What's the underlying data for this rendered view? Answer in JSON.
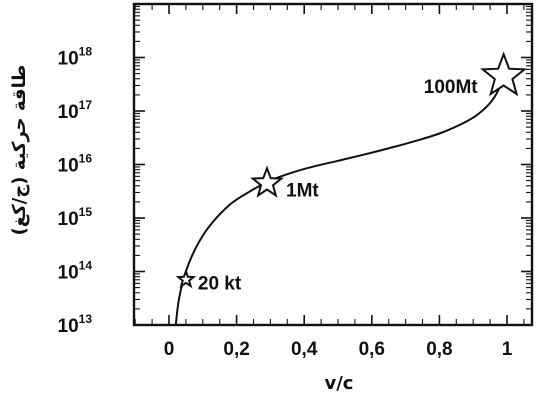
{
  "chart_data": {
    "type": "line",
    "xlabel": "v/c",
    "ylabel": "طاقة حركية (ج/كغ)",
    "xlim": [
      -0.1,
      1.1
    ],
    "ylim_log10": [
      13,
      19
    ],
    "y_scale": "log",
    "grid": false,
    "x_ticks": [
      {
        "value": 0,
        "label": "0"
      },
      {
        "value": 0.2,
        "label": "0,2"
      },
      {
        "value": 0.4,
        "label": "0,4"
      },
      {
        "value": 0.6,
        "label": "0,6"
      },
      {
        "value": 0.8,
        "label": "0,8"
      },
      {
        "value": 1,
        "label": "1"
      }
    ],
    "y_ticks": [
      {
        "exp": 13,
        "base": "10",
        "sup": "13"
      },
      {
        "exp": 14,
        "base": "10",
        "sup": "14"
      },
      {
        "exp": 15,
        "base": "10",
        "sup": "15"
      },
      {
        "exp": 16,
        "base": "10",
        "sup": "16"
      },
      {
        "exp": 17,
        "base": "10",
        "sup": "17"
      },
      {
        "exp": 18,
        "base": "10",
        "sup": "18"
      }
    ],
    "curve": [
      {
        "x": 0.02,
        "log10y": 12.9
      },
      {
        "x": 0.03,
        "log10y": 13.5
      },
      {
        "x": 0.05,
        "log10y": 14.0
      },
      {
        "x": 0.08,
        "log10y": 14.45
      },
      {
        "x": 0.12,
        "log10y": 14.85
      },
      {
        "x": 0.18,
        "log10y": 15.25
      },
      {
        "x": 0.24,
        "log10y": 15.5
      },
      {
        "x": 0.3,
        "log10y": 15.7
      },
      {
        "x": 0.36,
        "log10y": 15.84
      },
      {
        "x": 0.42,
        "log10y": 15.95
      },
      {
        "x": 0.5,
        "log10y": 16.07
      },
      {
        "x": 0.58,
        "log10y": 16.19
      },
      {
        "x": 0.66,
        "log10y": 16.32
      },
      {
        "x": 0.74,
        "log10y": 16.46
      },
      {
        "x": 0.8,
        "log10y": 16.58
      },
      {
        "x": 0.86,
        "log10y": 16.74
      },
      {
        "x": 0.91,
        "log10y": 16.92
      },
      {
        "x": 0.95,
        "log10y": 17.15
      },
      {
        "x": 0.975,
        "log10y": 17.4
      },
      {
        "x": 0.99,
        "log10y": 17.7
      }
    ],
    "markers": [
      {
        "label": "20 kt",
        "x": 0.05,
        "log10y": 13.85,
        "size": "small",
        "label_side": "right"
      },
      {
        "label": "1Mt",
        "x": 0.29,
        "log10y": 15.65,
        "size": "medium",
        "label_side": "right"
      },
      {
        "label": "100Mt",
        "x": 0.99,
        "log10y": 17.65,
        "size": "large",
        "label_side": "left"
      }
    ]
  }
}
